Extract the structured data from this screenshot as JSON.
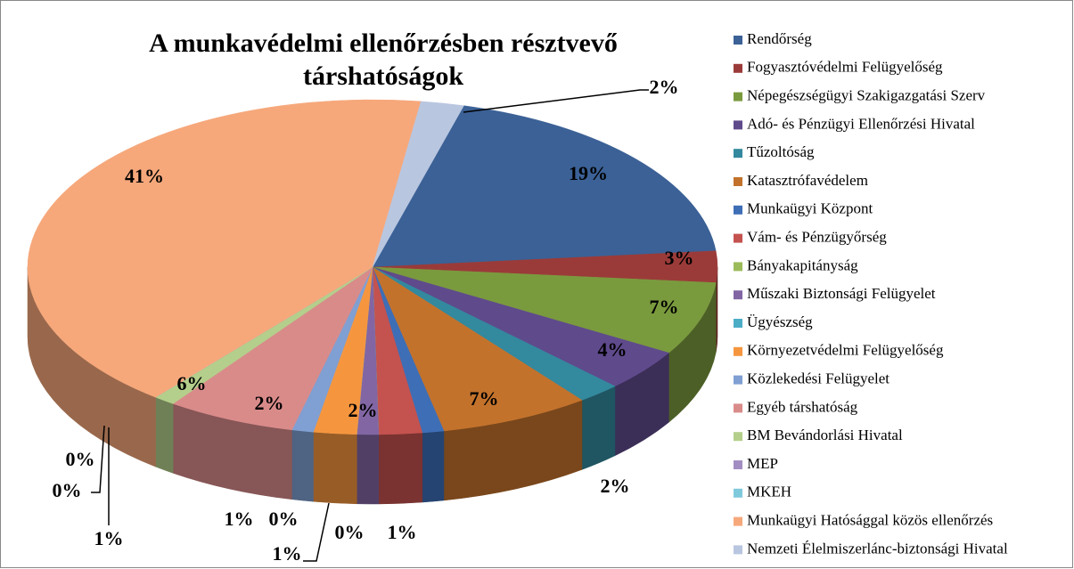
{
  "chart_data": {
    "type": "pie3d",
    "title": "A munkavédelmi ellenőrzésben résztvevő társhatóságok",
    "categories": [
      "Rendőrség",
      "Fogyasztóvédelmi Felügyelőség",
      "Népegészségügyi Szakigazgatási Szerv",
      "Adó- és Pénzügyi Ellenőrzési Hivatal",
      "Tűzoltóság",
      "Katasztrófavédelem",
      "Munkaügyi Központ",
      "Vám- és Pénzügyőrség",
      "Bányakapitányság",
      "Műszaki Biztonsági Felügyelet",
      "Ügyészség",
      "Környezetvédelmi Felügyelőség",
      "Közlekedési Felügyelet",
      "Egyéb társhatóság",
      "BM Bevándorlási Hivatal",
      "MEP",
      "MKEH",
      "Munkaügyi Hatósággal közös ellenőrzés",
      "Nemzeti Élelmiszerlánc-biztonsági Hivatal"
    ],
    "values": [
      19,
      3,
      7,
      4,
      2,
      7,
      1,
      2,
      0,
      1,
      0,
      2,
      1,
      6,
      1,
      0,
      0,
      41,
      2
    ],
    "value_labels": [
      "19%",
      "3%",
      "7%",
      "4%",
      "2%",
      "7%",
      "1%",
      "2%",
      "0%",
      "1%",
      "0%",
      "2%",
      "1%",
      "6%",
      "1%",
      "0%",
      "0%",
      "41%",
      "2%"
    ],
    "colors": [
      "#3b6196",
      "#9b3b39",
      "#7a9a3e",
      "#5f4a8c",
      "#33899e",
      "#c3722c",
      "#3e6eb6",
      "#c4524f",
      "#9cbc5b",
      "#8266a4",
      "#4cadc7",
      "#f5963f",
      "#809fd2",
      "#d98b8a",
      "#b4cf8b",
      "#a28ec3",
      "#7fc9dc",
      "#f6a87b",
      "#b9c6e0"
    ],
    "legend": "right"
  }
}
